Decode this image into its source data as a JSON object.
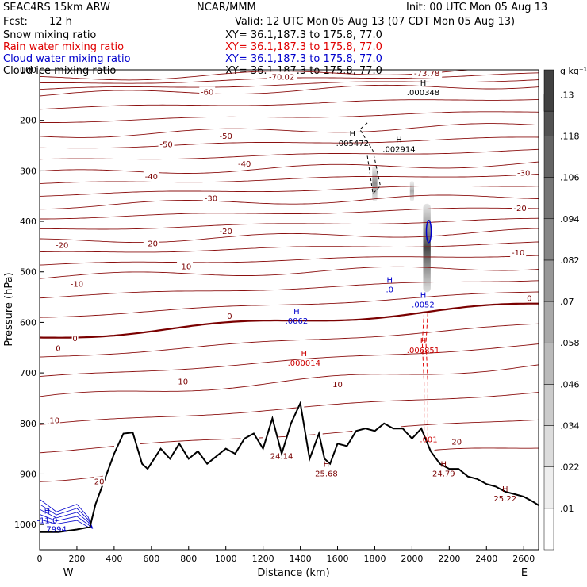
{
  "header": {
    "model": "SEAC4RS 15km ARW",
    "center": "NCAR/MMM",
    "init": "Init: 00 UTC Mon 05 Aug 13",
    "fcst_label": "Fcst:",
    "fcst_value": "12 h",
    "valid": "Valid: 12 UTC Mon 05 Aug 13 (07 CDT Mon 05 Aug 13)"
  },
  "fields": [
    {
      "name": "Snow mixing ratio",
      "xy": "XY=  36.1,187.3 to 175.8, 77.0",
      "color": "#000000"
    },
    {
      "name": "Rain water mixing ratio",
      "xy": "XY=  36.1,187.3 to 175.8, 77.0",
      "color": "#e00000"
    },
    {
      "name": "Cloud water mixing ratio",
      "xy": "XY=  36.1,187.3 to 175.8, 77.0",
      "color": "#0000cc"
    },
    {
      "name": "Cloud ice mixing ratio",
      "xy": "XY=  36.1,187.3 to 175.8, 77.0",
      "color": "#000000"
    }
  ],
  "chart_data": {
    "type": "contour_cross_section",
    "xlabel": "Distance (km)",
    "ylabel": "Pressure (hPa)",
    "xlim": [
      0,
      2680
    ],
    "ylim": [
      1050,
      100
    ],
    "x_ticks": [
      "0",
      "200",
      "400",
      "600",
      "800",
      "1000",
      "1200",
      "1400",
      "1600",
      "1800",
      "2000",
      "2200",
      "2400",
      "2600"
    ],
    "y_ticks": [
      "100",
      "200",
      "300",
      "400",
      "500",
      "600",
      "700",
      "800",
      "900",
      "1000"
    ],
    "x_end_labels": {
      "left": "W",
      "right": "E"
    },
    "colorbar": {
      "unit": "g kg⁻¹",
      "levels": [
        0.01,
        0.022,
        0.034,
        0.046,
        0.058,
        0.07,
        0.082,
        0.094,
        0.106,
        0.118,
        0.13
      ],
      "labels": [
        ".01",
        ".022",
        ".034",
        ".046",
        ".058",
        ".07",
        ".082",
        ".094",
        ".106",
        ".118",
        ".13"
      ]
    },
    "temperature_contours": {
      "interval_c": 10,
      "color": "#8b1010",
      "zero_line_color": "#7a0000",
      "labels": [
        {
          "text": "-70.02",
          "x": 1300,
          "p": 115
        },
        {
          "text": "-73.78",
          "x": 2080,
          "p": 108
        },
        {
          "text": "-60",
          "x": 900,
          "p": 145
        },
        {
          "text": "-50",
          "x": 1000,
          "p": 232
        },
        {
          "text": "-50",
          "x": 680,
          "p": 248
        },
        {
          "text": "-40",
          "x": 1100,
          "p": 287
        },
        {
          "text": "-40",
          "x": 600,
          "p": 312
        },
        {
          "text": "-30",
          "x": 920,
          "p": 355
        },
        {
          "text": "-30",
          "x": 2600,
          "p": 305
        },
        {
          "text": "-20",
          "x": 600,
          "p": 445
        },
        {
          "text": "-20",
          "x": 1000,
          "p": 420
        },
        {
          "text": "-20",
          "x": 120,
          "p": 448
        },
        {
          "text": "-20",
          "x": 2580,
          "p": 375
        },
        {
          "text": "-10",
          "x": 200,
          "p": 525
        },
        {
          "text": "-10",
          "x": 780,
          "p": 490
        },
        {
          "text": "-10",
          "x": 2570,
          "p": 463
        },
        {
          "text": "0",
          "x": 100,
          "p": 652
        },
        {
          "text": "0",
          "x": 190,
          "p": 632
        },
        {
          "text": "0",
          "x": 1020,
          "p": 588
        },
        {
          "text": "0",
          "x": 2630,
          "p": 553
        },
        {
          "text": "10",
          "x": 770,
          "p": 718
        },
        {
          "text": "10",
          "x": 1600,
          "p": 723
        },
        {
          "text": "10",
          "x": 80,
          "p": 795
        },
        {
          "text": "20",
          "x": 320,
          "p": 916
        },
        {
          "text": "20",
          "x": 2240,
          "p": 837
        }
      ]
    },
    "extrema": [
      {
        "label": "H",
        "value": ".000348",
        "x": 2060,
        "p": 138,
        "color": "#000000"
      },
      {
        "label": "H",
        "value": ".005472",
        "x": 1680,
        "p": 238,
        "color": "#000000"
      },
      {
        "label": "H",
        "value": ".002914",
        "x": 1930,
        "p": 250,
        "color": "#000000"
      },
      {
        "label": "H",
        "value": ".0",
        "x": 1880,
        "p": 528,
        "color": "#0000cc"
      },
      {
        "label": "H",
        "value": ".0052",
        "x": 2060,
        "p": 558,
        "color": "#0000cc"
      },
      {
        "label": "H",
        "value": ".0062",
        "x": 1380,
        "p": 590,
        "color": "#0000cc"
      },
      {
        "label": "H",
        "value": ".006851",
        "x": 2060,
        "p": 648,
        "color": "#cc0000"
      },
      {
        "label": "H",
        "value": ".000014",
        "x": 1420,
        "p": 673,
        "color": "#cc0000"
      },
      {
        "label": "",
        "value": ".001",
        "x": 2090,
        "p": 825,
        "color": "#cc0000"
      },
      {
        "label": "",
        "value": "24.14",
        "x": 1300,
        "p": 858,
        "color": "#7a0000"
      },
      {
        "label": "H",
        "value": "25.68",
        "x": 1540,
        "p": 892,
        "color": "#7a0000"
      },
      {
        "label": "H",
        "value": "24.79",
        "x": 2170,
        "p": 892,
        "color": "#7a0000"
      },
      {
        "label": "H",
        "value": "25.22",
        "x": 2500,
        "p": 942,
        "color": "#7a0000"
      },
      {
        "label": "H",
        "value": "-11.0",
        "x": 40,
        "p": 985,
        "color": "#0000cc"
      },
      {
        "label": "",
        "value": "7994",
        "x": 90,
        "p": 1002,
        "color": "#0000cc"
      }
    ],
    "terrain_pressure": {
      "x": [
        0,
        100,
        200,
        270,
        300,
        400,
        450,
        500,
        550,
        580,
        650,
        700,
        750,
        800,
        850,
        900,
        1000,
        1050,
        1100,
        1150,
        1200,
        1250,
        1300,
        1350,
        1400,
        1450,
        1500,
        1530,
        1560,
        1600,
        1650,
        1700,
        1750,
        1800,
        1850,
        1900,
        1950,
        2000,
        2050,
        2100,
        2150,
        2200,
        2250,
        2300,
        2350,
        2400,
        2450,
        2500,
        2550,
        2600,
        2650,
        2680
      ],
      "p": [
        1015,
        1015,
        1010,
        1005,
        960,
        860,
        820,
        818,
        880,
        890,
        850,
        870,
        840,
        870,
        855,
        880,
        850,
        860,
        830,
        820,
        850,
        790,
        860,
        800,
        760,
        870,
        820,
        870,
        880,
        840,
        845,
        815,
        810,
        815,
        800,
        810,
        810,
        830,
        810,
        855,
        880,
        890,
        890,
        905,
        910,
        920,
        925,
        935,
        940,
        945,
        955,
        962
      ]
    },
    "cloud_water_shading": [
      {
        "x": 2080,
        "p_top": 365,
        "p_bottom": 540,
        "max": 0.09
      },
      {
        "x": 1800,
        "p_top": 290,
        "p_bottom": 360,
        "max": 0.04
      },
      {
        "x": 2000,
        "p_top": 320,
        "p_bottom": 360,
        "max": 0.02
      }
    ]
  }
}
